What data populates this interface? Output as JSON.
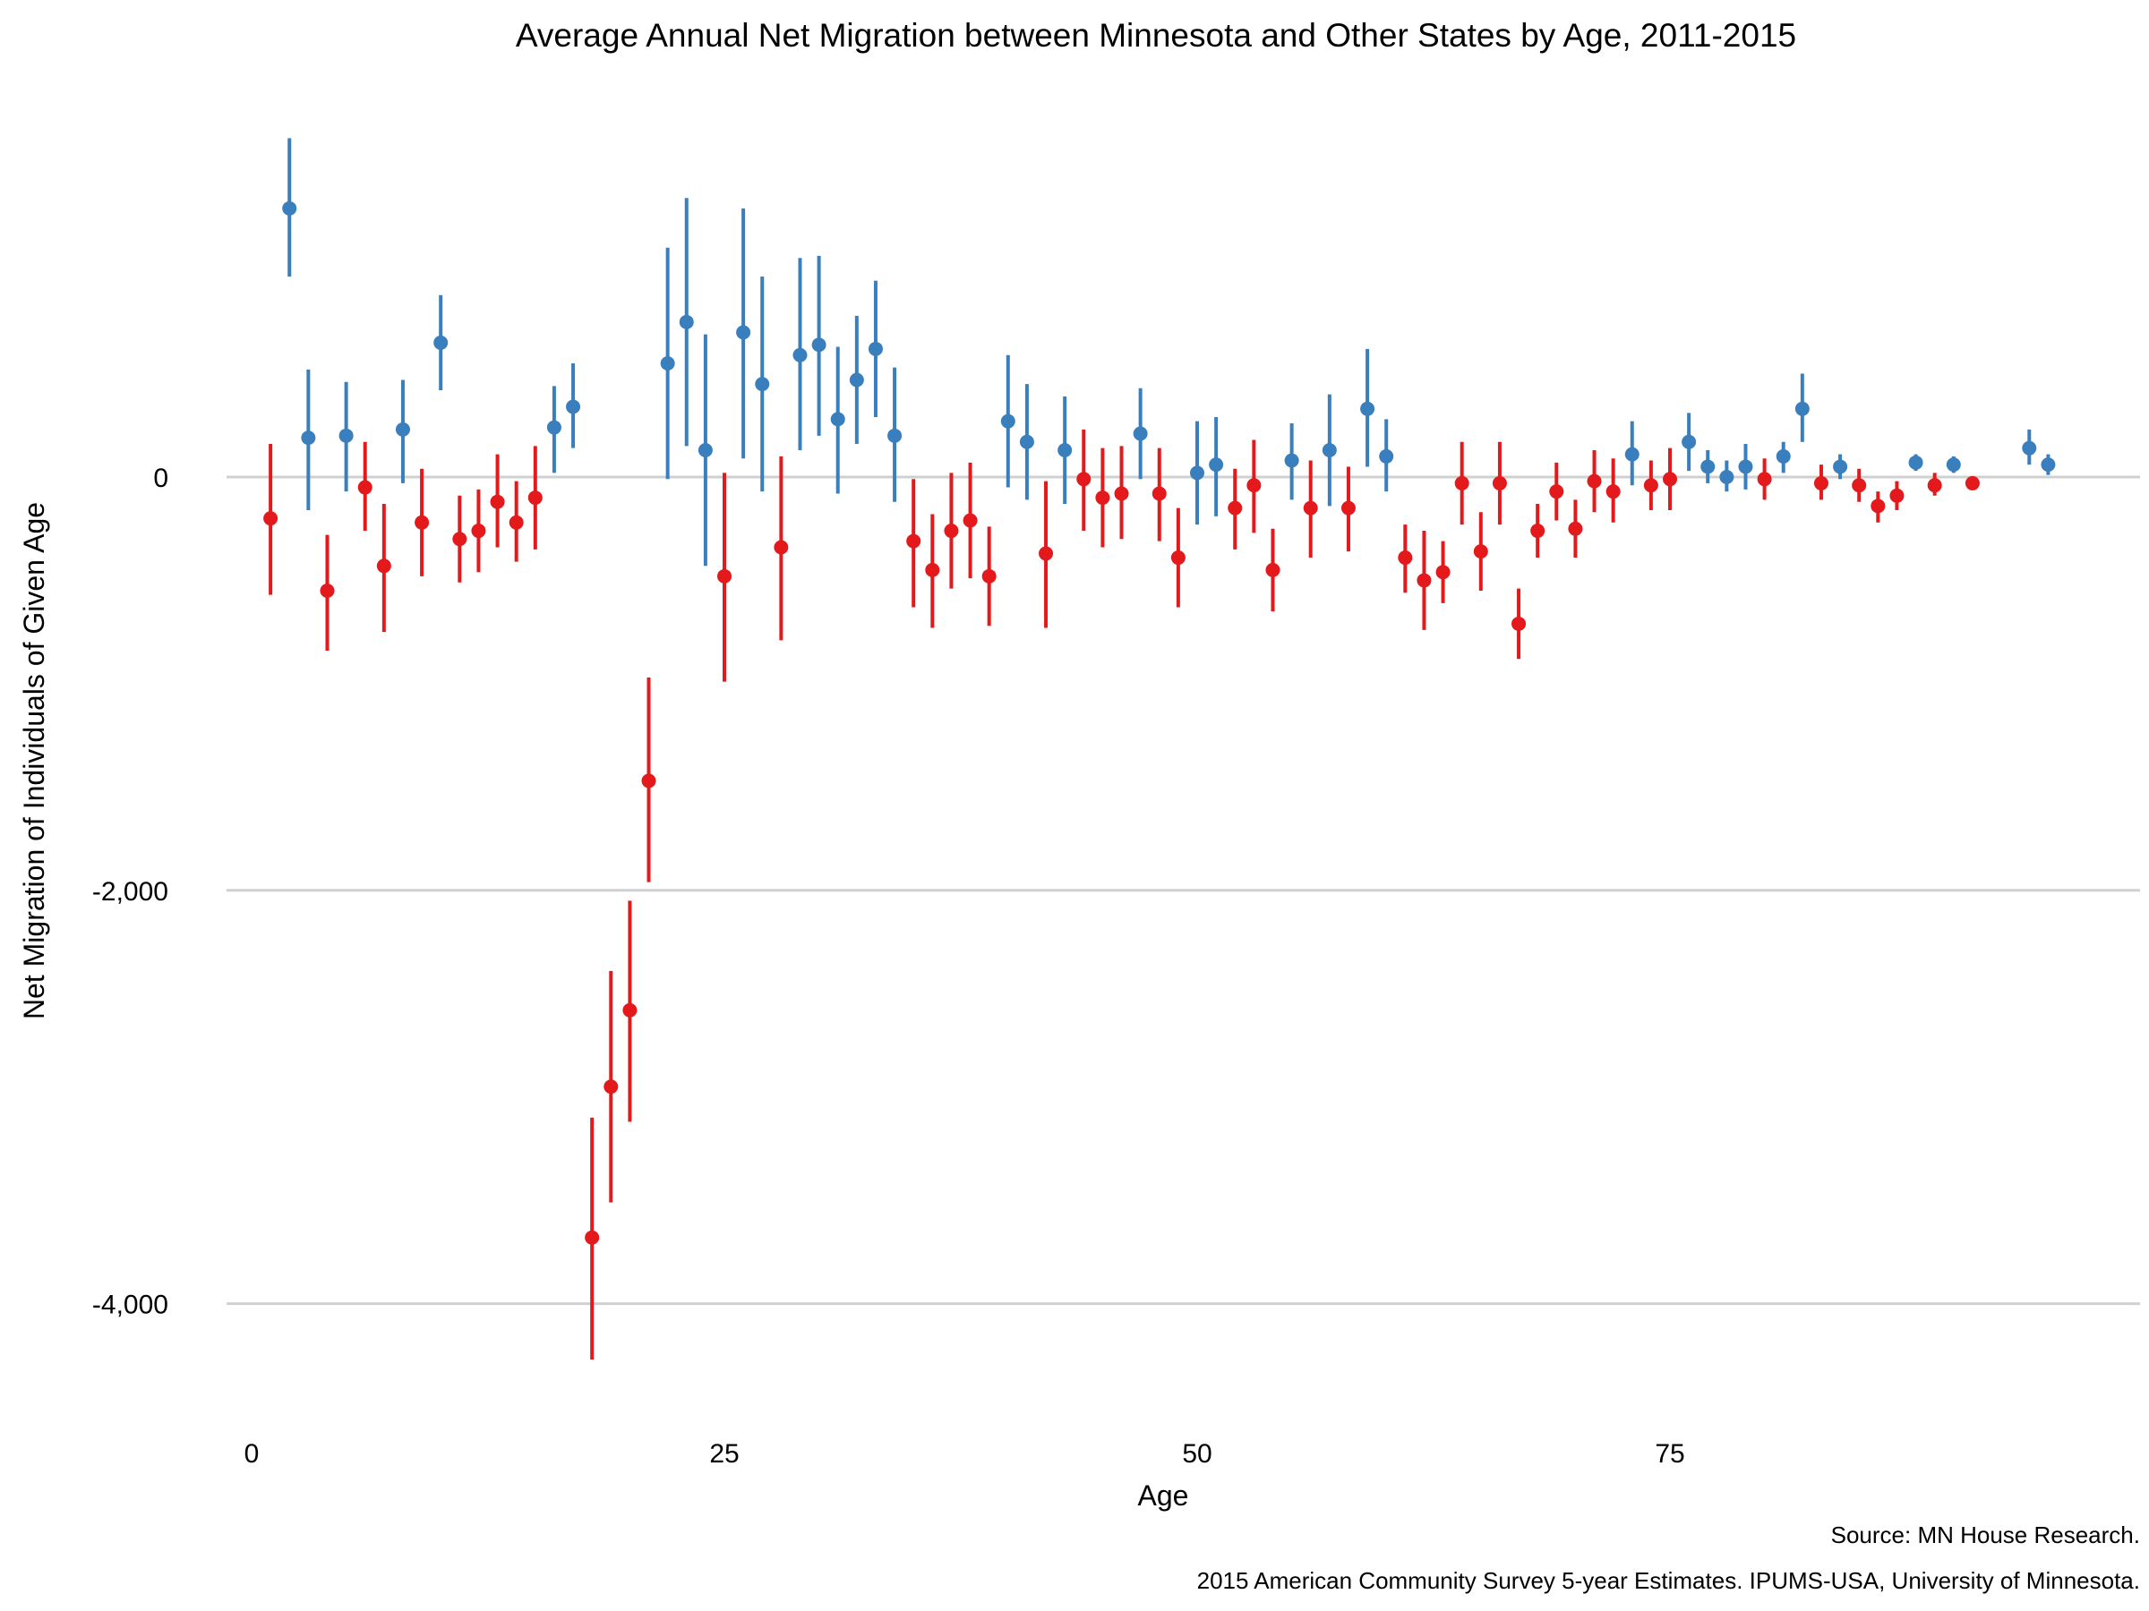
{
  "chart_data": {
    "type": "scatter",
    "title": "Average Annual Net Migration between Minnesota and Other States by Age, 2011-2015",
    "xlabel": "Age",
    "ylabel": "Net Migration of Individuals of Given Age",
    "xlim": [
      -2,
      99
    ],
    "ylim": [
      -4500,
      1780
    ],
    "x_ticks": [
      {
        "value": 0,
        "label": "0"
      },
      {
        "value": 25,
        "label": "25"
      },
      {
        "value": 50,
        "label": "50"
      },
      {
        "value": 75,
        "label": "75"
      }
    ],
    "y_ticks": [
      {
        "value": 0,
        "label": "0"
      },
      {
        "value": -2000,
        "label": "-2,000"
      },
      {
        "value": -4000,
        "label": "-4,000"
      }
    ],
    "grid": "horizontal",
    "legend": "none",
    "colors": {
      "positive": "#3a7fbd",
      "negative": "#e3191c",
      "grid": "#d0d0d0"
    },
    "points": [
      {
        "x": 1,
        "y": -200,
        "low": -570,
        "high": 160
      },
      {
        "x": 2,
        "y": 1300,
        "low": 970,
        "high": 1640
      },
      {
        "x": 3,
        "y": 190,
        "low": -160,
        "high": 520
      },
      {
        "x": 4,
        "y": -550,
        "low": -840,
        "high": -280
      },
      {
        "x": 5,
        "y": 200,
        "low": -70,
        "high": 460
      },
      {
        "x": 6,
        "y": -50,
        "low": -260,
        "high": 170
      },
      {
        "x": 7,
        "y": -430,
        "low": -750,
        "high": -130
      },
      {
        "x": 8,
        "y": 230,
        "low": -30,
        "high": 470
      },
      {
        "x": 9,
        "y": -220,
        "low": -480,
        "high": 40
      },
      {
        "x": 10,
        "y": 650,
        "low": 420,
        "high": 880
      },
      {
        "x": 11,
        "y": -300,
        "low": -510,
        "high": -90
      },
      {
        "x": 12,
        "y": -260,
        "low": -460,
        "high": -60
      },
      {
        "x": 13,
        "y": -120,
        "low": -340,
        "high": 110
      },
      {
        "x": 14,
        "y": -220,
        "low": -410,
        "high": -20
      },
      {
        "x": 15,
        "y": -100,
        "low": -350,
        "high": 150
      },
      {
        "x": 16,
        "y": 240,
        "low": 20,
        "high": 440
      },
      {
        "x": 17,
        "y": 340,
        "low": 140,
        "high": 550
      },
      {
        "x": 18,
        "y": -3680,
        "low": -4270,
        "high": -3100
      },
      {
        "x": 19,
        "y": -2950,
        "low": -3510,
        "high": -2390
      },
      {
        "x": 20,
        "y": -2580,
        "low": -3120,
        "high": -2050
      },
      {
        "x": 21,
        "y": -1470,
        "low": -1960,
        "high": -970
      },
      {
        "x": 22,
        "y": 550,
        "low": -10,
        "high": 1110
      },
      {
        "x": 23,
        "y": 750,
        "low": 150,
        "high": 1350
      },
      {
        "x": 24,
        "y": 130,
        "low": -430,
        "high": 690
      },
      {
        "x": 25,
        "y": -480,
        "low": -990,
        "high": 20
      },
      {
        "x": 26,
        "y": 700,
        "low": 90,
        "high": 1300
      },
      {
        "x": 27,
        "y": 450,
        "low": -70,
        "high": 970
      },
      {
        "x": 28,
        "y": -340,
        "low": -790,
        "high": 100
      },
      {
        "x": 29,
        "y": 590,
        "low": 130,
        "high": 1060
      },
      {
        "x": 30,
        "y": 640,
        "low": 200,
        "high": 1070
      },
      {
        "x": 31,
        "y": 280,
        "low": -80,
        "high": 630
      },
      {
        "x": 32,
        "y": 470,
        "low": 160,
        "high": 780
      },
      {
        "x": 33,
        "y": 620,
        "low": 290,
        "high": 950
      },
      {
        "x": 34,
        "y": 200,
        "low": -120,
        "high": 530
      },
      {
        "x": 35,
        "y": -310,
        "low": -630,
        "high": -10
      },
      {
        "x": 36,
        "y": -450,
        "low": -730,
        "high": -180
      },
      {
        "x": 37,
        "y": -260,
        "low": -540,
        "high": 20
      },
      {
        "x": 38,
        "y": -210,
        "low": -490,
        "high": 70
      },
      {
        "x": 39,
        "y": -480,
        "low": -720,
        "high": -240
      },
      {
        "x": 40,
        "y": 270,
        "low": -50,
        "high": 590
      },
      {
        "x": 41,
        "y": 170,
        "low": -110,
        "high": 450
      },
      {
        "x": 42,
        "y": -370,
        "low": -730,
        "high": -20
      },
      {
        "x": 43,
        "y": 130,
        "low": -130,
        "high": 390
      },
      {
        "x": 44,
        "y": -10,
        "low": -260,
        "high": 230
      },
      {
        "x": 45,
        "y": -100,
        "low": -340,
        "high": 140
      },
      {
        "x": 46,
        "y": -80,
        "low": -300,
        "high": 150
      },
      {
        "x": 47,
        "y": 210,
        "low": -10,
        "high": 430
      },
      {
        "x": 48,
        "y": -80,
        "low": -310,
        "high": 140
      },
      {
        "x": 49,
        "y": -390,
        "low": -630,
        "high": -150
      },
      {
        "x": 50,
        "y": 20,
        "low": -230,
        "high": 270
      },
      {
        "x": 51,
        "y": 60,
        "low": -190,
        "high": 290
      },
      {
        "x": 52,
        "y": -150,
        "low": -350,
        "high": 40
      },
      {
        "x": 53,
        "y": -40,
        "low": -270,
        "high": 180
      },
      {
        "x": 54,
        "y": -450,
        "low": -650,
        "high": -250
      },
      {
        "x": 55,
        "y": 80,
        "low": -110,
        "high": 260
      },
      {
        "x": 56,
        "y": -150,
        "low": -390,
        "high": 80
      },
      {
        "x": 57,
        "y": 130,
        "low": -140,
        "high": 400
      },
      {
        "x": 58,
        "y": -150,
        "low": -360,
        "high": 50
      },
      {
        "x": 59,
        "y": 330,
        "low": 50,
        "high": 620
      },
      {
        "x": 60,
        "y": 100,
        "low": -70,
        "high": 280
      },
      {
        "x": 61,
        "y": -390,
        "low": -560,
        "high": -230
      },
      {
        "x": 62,
        "y": -500,
        "low": -740,
        "high": -260
      },
      {
        "x": 63,
        "y": -460,
        "low": -610,
        "high": -310
      },
      {
        "x": 64,
        "y": -30,
        "low": -230,
        "high": 170
      },
      {
        "x": 65,
        "y": -360,
        "low": -550,
        "high": -170
      },
      {
        "x": 66,
        "y": -30,
        "low": -230,
        "high": 170
      },
      {
        "x": 67,
        "y": -710,
        "low": -880,
        "high": -540
      },
      {
        "x": 68,
        "y": -260,
        "low": -390,
        "high": -130
      },
      {
        "x": 69,
        "y": -70,
        "low": -210,
        "high": 70
      },
      {
        "x": 70,
        "y": -250,
        "low": -390,
        "high": -110
      },
      {
        "x": 71,
        "y": -20,
        "low": -170,
        "high": 130
      },
      {
        "x": 72,
        "y": -70,
        "low": -220,
        "high": 90
      },
      {
        "x": 73,
        "y": 110,
        "low": -40,
        "high": 270
      },
      {
        "x": 74,
        "y": -40,
        "low": -160,
        "high": 80
      },
      {
        "x": 75,
        "y": -10,
        "low": -160,
        "high": 140
      },
      {
        "x": 76,
        "y": 170,
        "low": 30,
        "high": 310
      },
      {
        "x": 77,
        "y": 50,
        "low": -30,
        "high": 130
      },
      {
        "x": 78,
        "y": 0,
        "low": -70,
        "high": 80
      },
      {
        "x": 79,
        "y": 50,
        "low": -60,
        "high": 160
      },
      {
        "x": 80,
        "y": -10,
        "low": -110,
        "high": 90
      },
      {
        "x": 81,
        "y": 100,
        "low": 20,
        "high": 170
      },
      {
        "x": 82,
        "y": 330,
        "low": 170,
        "high": 500
      },
      {
        "x": 83,
        "y": -30,
        "low": -110,
        "high": 60
      },
      {
        "x": 84,
        "y": 50,
        "low": -10,
        "high": 110
      },
      {
        "x": 85,
        "y": -40,
        "low": -120,
        "high": 40
      },
      {
        "x": 86,
        "y": -140,
        "low": -220,
        "high": -70
      },
      {
        "x": 87,
        "y": -90,
        "low": -160,
        "high": -20
      },
      {
        "x": 88,
        "y": 70,
        "low": 30,
        "high": 110
      },
      {
        "x": 89,
        "y": -40,
        "low": -90,
        "high": 20
      },
      {
        "x": 90,
        "y": 60,
        "low": 20,
        "high": 100
      },
      {
        "x": 91,
        "y": -30,
        "low": -50,
        "high": -10
      },
      {
        "x": 94,
        "y": 140,
        "low": 60,
        "high": 230
      },
      {
        "x": 95,
        "y": 60,
        "low": 10,
        "high": 110
      }
    ]
  },
  "caption": {
    "source": "Source: MN House Research.",
    "data_note": "2015 American Community Survey 5-year Estimates. IPUMS-USA, University of Minnesota."
  }
}
